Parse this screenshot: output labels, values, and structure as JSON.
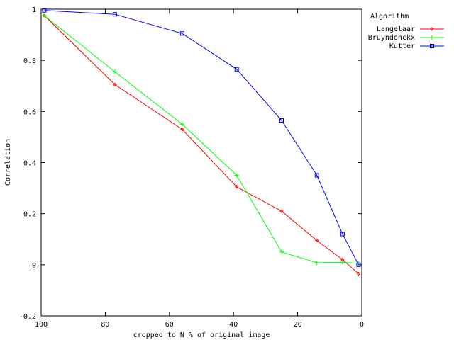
{
  "chart_data": {
    "type": "line",
    "xlabel": "cropped to N % of original image",
    "ylabel": "Correlation",
    "xlim": [
      100,
      0
    ],
    "ylim": [
      -0.2,
      1
    ],
    "x_ticks": [
      100,
      80,
      60,
      40,
      20,
      0
    ],
    "y_ticks": [
      -0.2,
      0,
      0.2,
      0.4,
      0.6,
      0.8,
      1
    ],
    "x_tick_labels": [
      "100",
      "80",
      "60",
      "40",
      "20",
      "0"
    ],
    "y_tick_labels": [
      "-0.2",
      "0",
      "0.2",
      "0.4",
      "0.6",
      "0.8",
      "1"
    ],
    "grid": false,
    "legend_title": "Algorithm",
    "legend_position": "outside-top-right",
    "series": [
      {
        "name": "Langelaar",
        "color": "#ff0000",
        "marker": "diamond",
        "points": [
          [
            99,
            0.975
          ],
          [
            77,
            0.705
          ],
          [
            56,
            0.53
          ],
          [
            39,
            0.305
          ],
          [
            25,
            0.21
          ],
          [
            14,
            0.095
          ],
          [
            6,
            0.02
          ],
          [
            1,
            -0.035
          ]
        ]
      },
      {
        "name": "Bruyndonckx",
        "color": "#00ff00",
        "marker": "plus",
        "points": [
          [
            99,
            0.975
          ],
          [
            77,
            0.755
          ],
          [
            56,
            0.55
          ],
          [
            39,
            0.35
          ],
          [
            25,
            0.05
          ],
          [
            14,
            0.008
          ],
          [
            6,
            0.01
          ],
          [
            1,
            0.005
          ]
        ]
      },
      {
        "name": "Kutter",
        "color": "#0000ff",
        "marker": "square",
        "points": [
          [
            99,
            0.995
          ],
          [
            77,
            0.98
          ],
          [
            56,
            0.905
          ],
          [
            39,
            0.765
          ],
          [
            25,
            0.565
          ],
          [
            14,
            0.35
          ],
          [
            6,
            0.12
          ],
          [
            1,
            0.0
          ]
        ]
      }
    ]
  }
}
